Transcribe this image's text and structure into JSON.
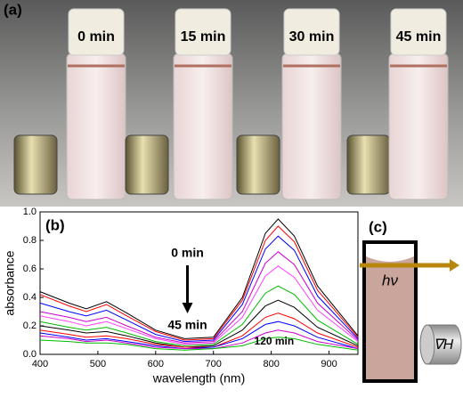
{
  "photo": {
    "label": "(a)",
    "times": [
      "0 min",
      "15 min",
      "30 min",
      "45 min"
    ]
  },
  "chart_data": {
    "type": "line",
    "label": "(b)",
    "x_label": "wavelength (nm)",
    "y_label": "absorbance",
    "x": [
      400,
      450,
      480,
      515,
      550,
      600,
      650,
      700,
      750,
      790,
      812,
      840,
      880,
      950
    ],
    "series": [
      {
        "color": "#000000",
        "values": [
          0.44,
          0.36,
          0.32,
          0.37,
          0.29,
          0.17,
          0.11,
          0.12,
          0.4,
          0.85,
          0.95,
          0.83,
          0.48,
          0.13
        ]
      },
      {
        "color": "#ff0000",
        "values": [
          0.42,
          0.34,
          0.3,
          0.35,
          0.27,
          0.16,
          0.1,
          0.11,
          0.38,
          0.8,
          0.9,
          0.79,
          0.45,
          0.12
        ]
      },
      {
        "color": "#0000ff",
        "values": [
          0.36,
          0.3,
          0.27,
          0.31,
          0.24,
          0.14,
          0.09,
          0.1,
          0.35,
          0.74,
          0.83,
          0.73,
          0.41,
          0.11
        ]
      },
      {
        "color": "#cc00cc",
        "values": [
          0.3,
          0.26,
          0.23,
          0.26,
          0.2,
          0.12,
          0.08,
          0.09,
          0.3,
          0.64,
          0.72,
          0.63,
          0.36,
          0.1
        ]
      },
      {
        "color": "#ff44ff",
        "values": [
          0.27,
          0.23,
          0.2,
          0.23,
          0.18,
          0.11,
          0.07,
          0.08,
          0.26,
          0.55,
          0.62,
          0.54,
          0.31,
          0.09
        ]
      },
      {
        "color": "#00bb00",
        "values": [
          0.23,
          0.19,
          0.17,
          0.19,
          0.15,
          0.09,
          0.06,
          0.07,
          0.21,
          0.43,
          0.48,
          0.42,
          0.24,
          0.07
        ]
      },
      {
        "color": "#000000",
        "values": [
          0.2,
          0.17,
          0.15,
          0.16,
          0.13,
          0.08,
          0.05,
          0.06,
          0.17,
          0.34,
          0.38,
          0.33,
          0.19,
          0.06
        ]
      },
      {
        "color": "#ff0000",
        "values": [
          0.17,
          0.14,
          0.12,
          0.13,
          0.11,
          0.07,
          0.05,
          0.05,
          0.13,
          0.26,
          0.29,
          0.25,
          0.15,
          0.05
        ]
      },
      {
        "color": "#0000ff",
        "values": [
          0.15,
          0.12,
          0.1,
          0.11,
          0.09,
          0.06,
          0.04,
          0.05,
          0.11,
          0.21,
          0.23,
          0.2,
          0.12,
          0.04
        ]
      },
      {
        "color": "#cc00cc",
        "values": [
          0.13,
          0.11,
          0.09,
          0.1,
          0.08,
          0.05,
          0.04,
          0.04,
          0.08,
          0.15,
          0.17,
          0.15,
          0.09,
          0.04
        ]
      },
      {
        "color": "#00bb00",
        "values": [
          0.1,
          0.09,
          0.08,
          0.08,
          0.07,
          0.04,
          0.03,
          0.04,
          0.06,
          0.11,
          0.12,
          0.11,
          0.07,
          0.03
        ]
      }
    ],
    "xlim": [
      400,
      950
    ],
    "xticks": [
      400,
      500,
      600,
      700,
      800,
      900
    ],
    "ylim": [
      0,
      1.0
    ],
    "yticks": [
      {
        "value": 0,
        "label": "0.0"
      },
      0.2,
      0.4,
      0.6,
      0.8,
      {
        "value": 1.0,
        "label": "1.0"
      }
    ],
    "annotations": [
      "0 min",
      "45 min",
      "120 min"
    ]
  },
  "diagram": {
    "label": "(c)",
    "beam": "hν",
    "field": "∇H"
  }
}
